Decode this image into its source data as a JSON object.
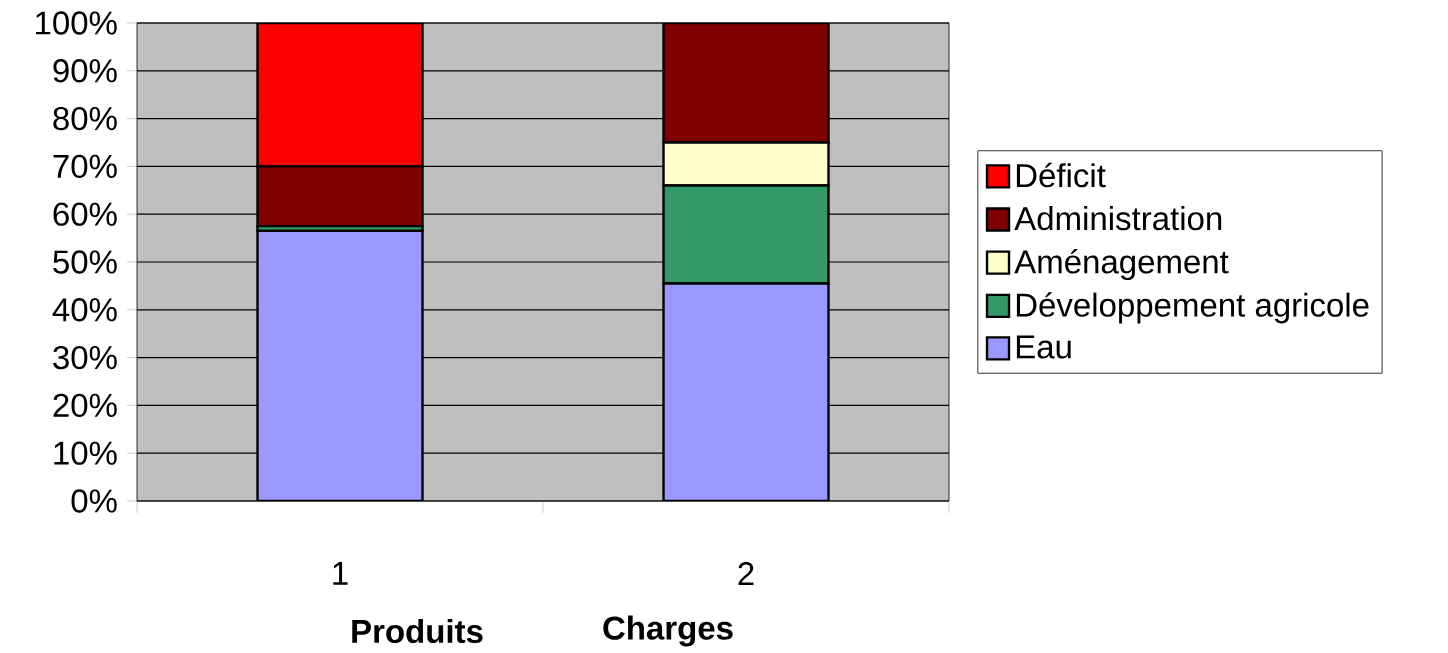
{
  "chart_data": {
    "type": "bar",
    "stacked": true,
    "categories": [
      "1",
      "2"
    ],
    "series": [
      {
        "name": "Eau",
        "color": "#9999ff",
        "values": [
          56.5,
          45.5
        ]
      },
      {
        "name": "Développement agricole",
        "color": "#339966",
        "values": [
          1,
          20.5
        ]
      },
      {
        "name": "Aménagement",
        "color": "#ffffcc",
        "values": [
          null,
          9
        ]
      },
      {
        "name": "Administration",
        "color": "#800000",
        "values": [
          12.5,
          25
        ]
      },
      {
        "name": "Déficit",
        "color": "#ff0000",
        "values": [
          30,
          null
        ]
      }
    ],
    "ylim": [
      0,
      100
    ],
    "yticks": [
      {
        "value": 0,
        "label": "0%"
      },
      {
        "value": 10,
        "label": "10%"
      },
      {
        "value": 20,
        "label": "20%"
      },
      {
        "value": 30,
        "label": "30%"
      },
      {
        "value": 40,
        "label": "40%"
      },
      {
        "value": 50,
        "label": "50%"
      },
      {
        "value": 60,
        "label": "60%"
      },
      {
        "value": 70,
        "label": "70%"
      },
      {
        "value": 80,
        "label": "80%"
      },
      {
        "value": 90,
        "label": "90%"
      },
      {
        "value": 100,
        "label": "100%"
      }
    ],
    "grid": "y",
    "legend": "right",
    "annotations": [
      "Produits",
      "Charges"
    ]
  }
}
